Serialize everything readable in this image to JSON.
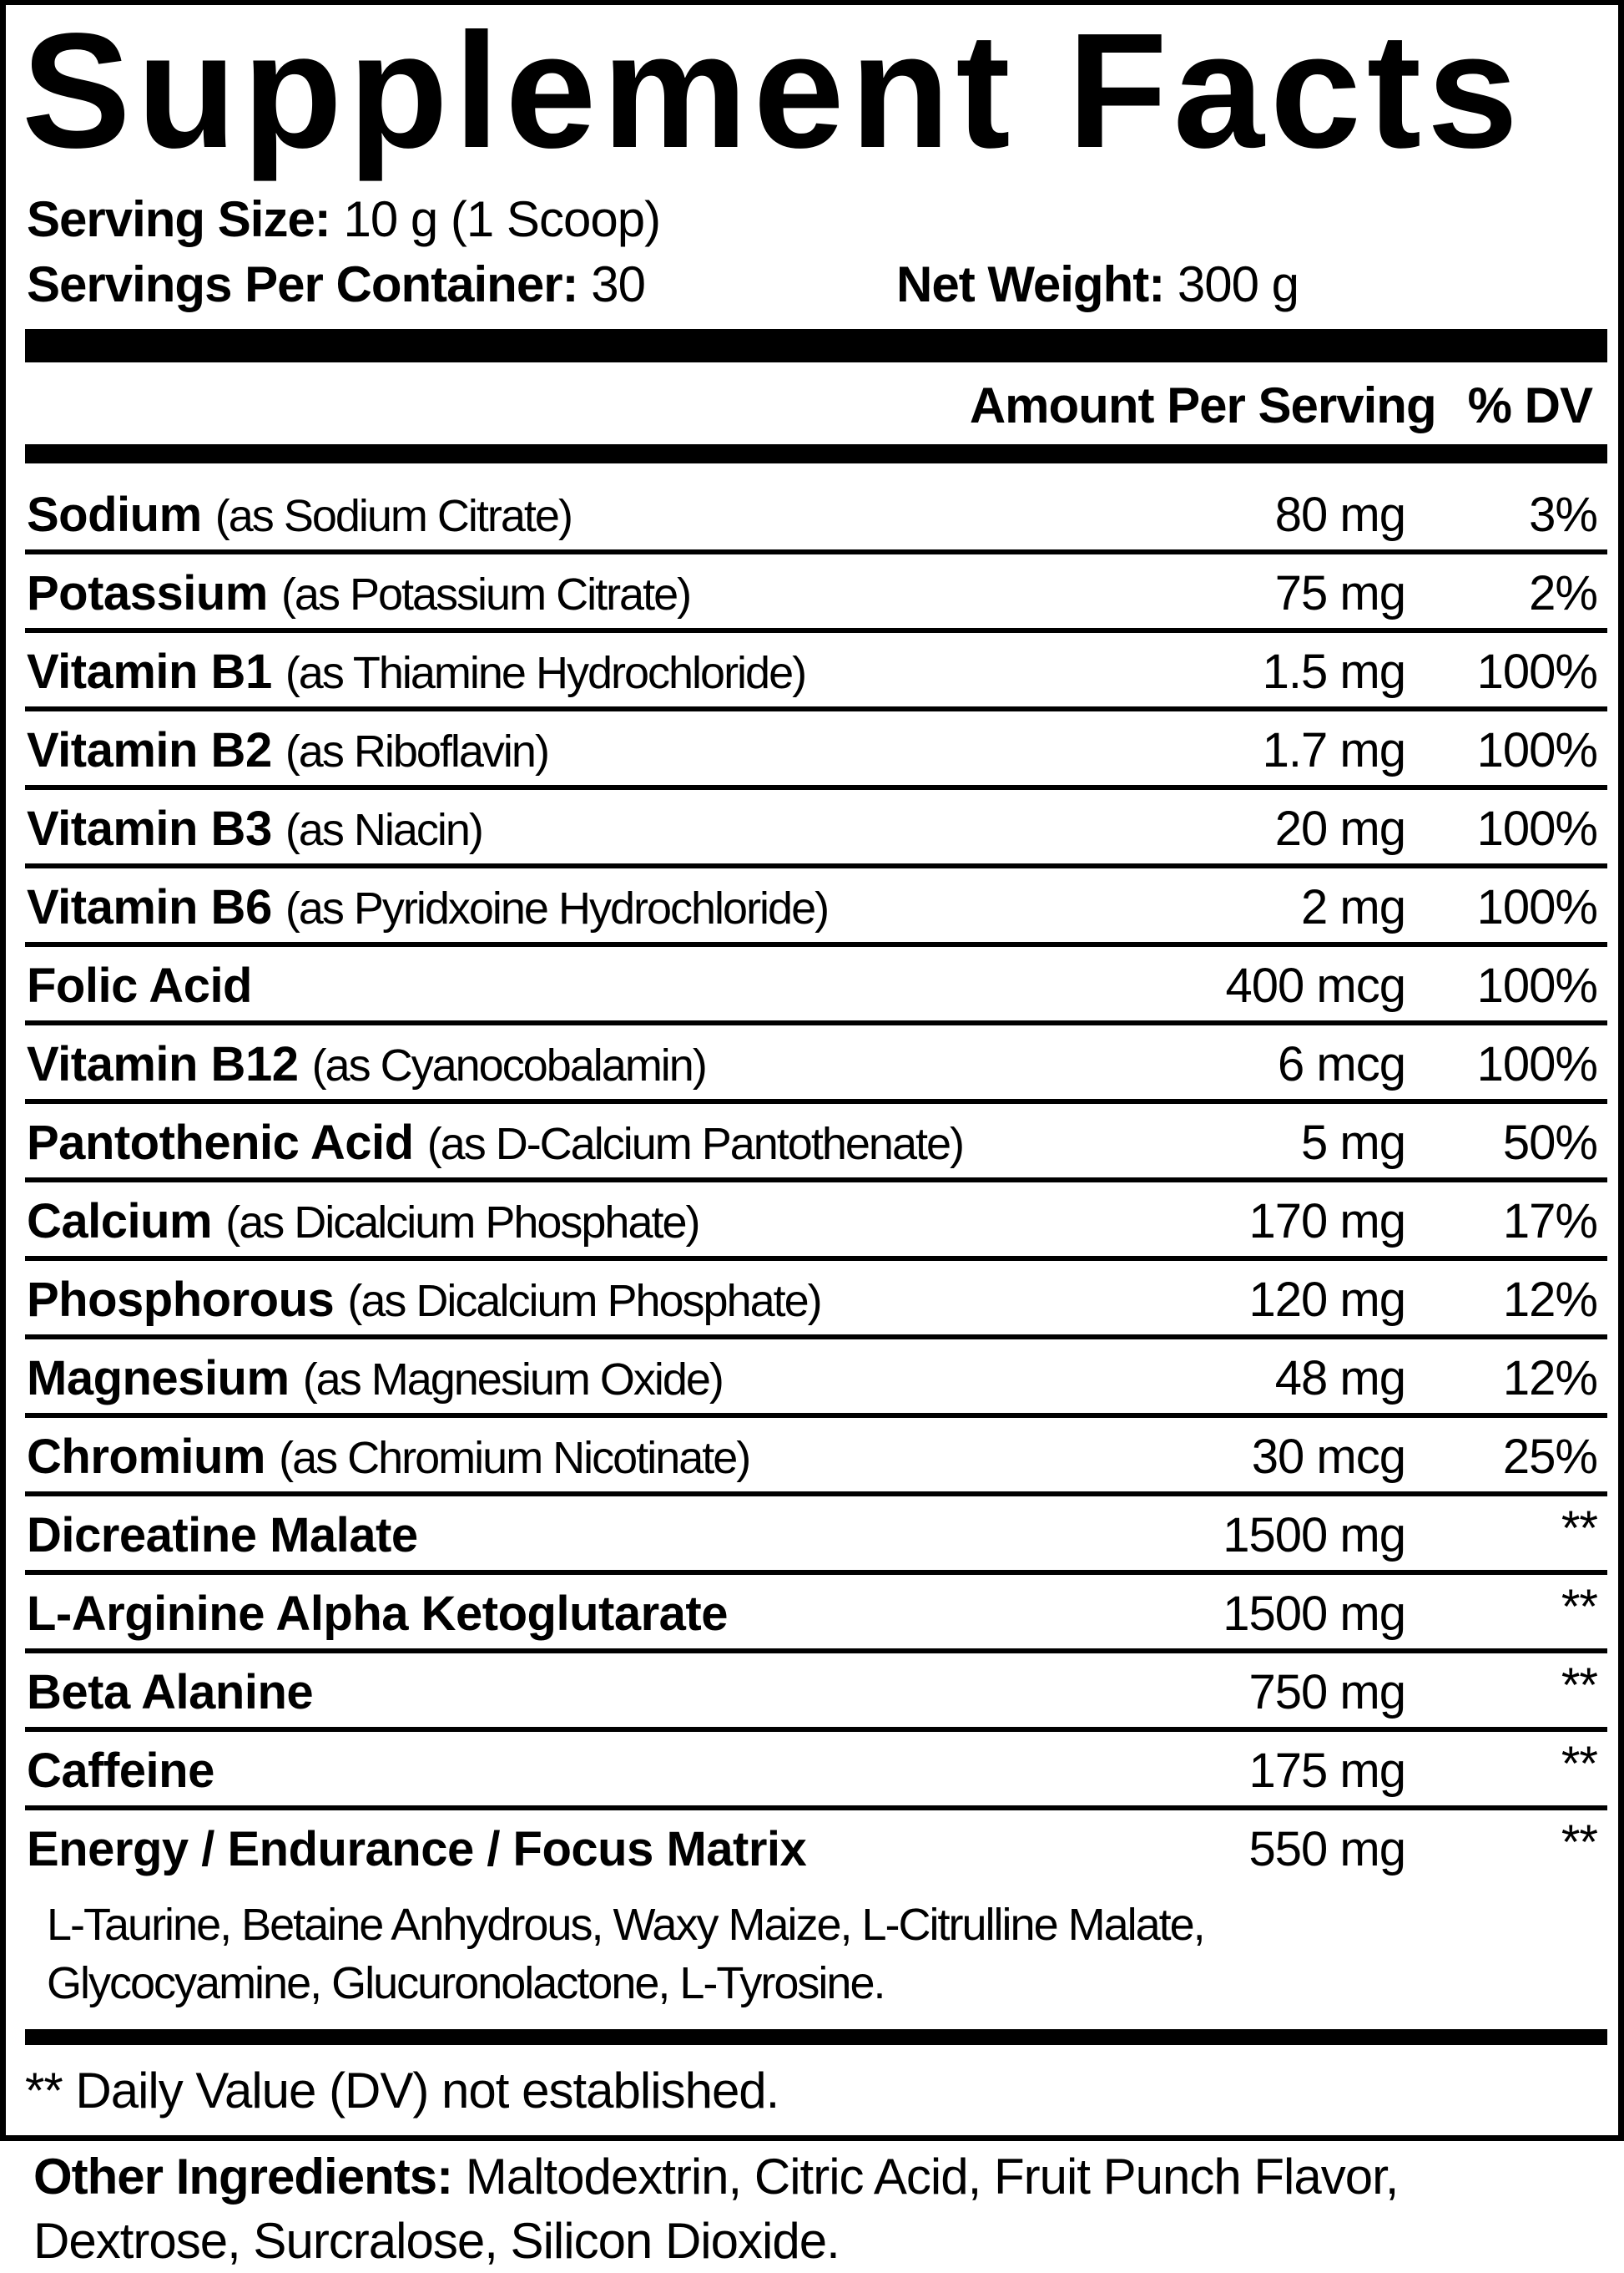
{
  "title": "Supplement Facts",
  "serving": {
    "size_label": "Serving Size:",
    "size_value": "10 g (1 Scoop)",
    "per_container_label": "Servings Per Container:",
    "per_container_value": "30",
    "net_weight_label": "Net Weight:",
    "net_weight_value": "300 g"
  },
  "header": {
    "amount": "Amount Per Serving",
    "dv": "% DV"
  },
  "rows": [
    {
      "name": "Sodium",
      "source": "(as Sodium Citrate)",
      "amount": "80 mg",
      "dv": "3%"
    },
    {
      "name": "Potassium",
      "source": "(as Potassium Citrate)",
      "amount": "75 mg",
      "dv": "2%"
    },
    {
      "name": "Vitamin B1",
      "source": "(as Thiamine Hydrochloride)",
      "amount": "1.5 mg",
      "dv": "100%"
    },
    {
      "name": "Vitamin B2",
      "source": "(as Riboflavin)",
      "amount": "1.7 mg",
      "dv": "100%"
    },
    {
      "name": "Vitamin B3",
      "source": "(as Niacin)",
      "amount": "20 mg",
      "dv": "100%"
    },
    {
      "name": "Vitamin B6",
      "source": "(as Pyridxoine Hydrochloride)",
      "amount": "2 mg",
      "dv": "100%"
    },
    {
      "name": "Folic Acid",
      "source": "",
      "amount": "400 mcg",
      "dv": "100%"
    },
    {
      "name": "Vitamin B12",
      "source": "(as Cyanocobalamin)",
      "amount": "6 mcg",
      "dv": "100%"
    },
    {
      "name": "Pantothenic Acid",
      "source": "(as D-Calcium Pantothenate)",
      "amount": "5 mg",
      "dv": "50%"
    },
    {
      "name": "Calcium",
      "source": "(as Dicalcium Phosphate)",
      "amount": "170 mg",
      "dv": "17%"
    },
    {
      "name": "Phosphorous",
      "source": "(as Dicalcium Phosphate)",
      "amount": "120 mg",
      "dv": "12%"
    },
    {
      "name": "Magnesium",
      "source": "(as Magnesium Oxide)",
      "amount": "48 mg",
      "dv": "12%"
    },
    {
      "name": "Chromium",
      "source": "(as Chromium Nicotinate)",
      "amount": "30 mcg",
      "dv": "25%"
    },
    {
      "name": "Dicreatine Malate",
      "source": "",
      "amount": "1500 mg",
      "dv": "**"
    },
    {
      "name": "L-Arginine Alpha Ketoglutarate",
      "source": "",
      "amount": "1500 mg",
      "dv": "**"
    },
    {
      "name": "Beta Alanine",
      "source": "",
      "amount": "750 mg",
      "dv": "**"
    },
    {
      "name": "Caffeine",
      "source": "",
      "amount": "175 mg",
      "dv": "**"
    },
    {
      "name": "Energy / Endurance / Focus Matrix",
      "source": "",
      "amount": "550 mg",
      "dv": "**"
    }
  ],
  "matrix_ingredients": {
    "line1": "L-Taurine, Betaine Anhydrous, Waxy Maize, L-Citrulline Malate,",
    "line2": "Glycocyamine, Glucuronolactone, L-Tyrosine."
  },
  "footnote": "** Daily Value (DV) not established.",
  "other_ingredients": {
    "label": "Other Ingredients:",
    "value": "Maltodextrin, Citric Acid, Fruit Punch Flavor, Dextrose, Surcralose, Silicon Dioxide."
  }
}
